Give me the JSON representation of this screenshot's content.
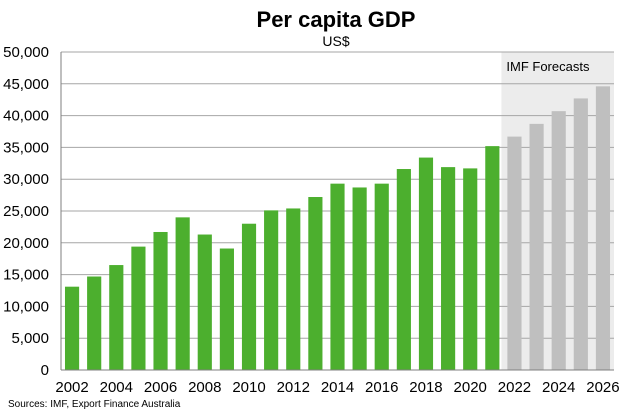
{
  "chart_data": {
    "type": "bar",
    "title": "Per capita GDP",
    "subtitle": "US$",
    "xlabel": "",
    "ylabel": "",
    "ylim": [
      0,
      50000
    ],
    "y_ticks": [
      "0",
      "5,000",
      "10,000",
      "15,000",
      "20,000",
      "25,000",
      "30,000",
      "35,000",
      "40,000",
      "45,000",
      "50,000"
    ],
    "x_tick_labels": [
      "2002",
      "2004",
      "2006",
      "2008",
      "2010",
      "2012",
      "2014",
      "2016",
      "2018",
      "2020",
      "2022",
      "2024",
      "2026"
    ],
    "categories": [
      "2002",
      "2003",
      "2004",
      "2005",
      "2006",
      "2007",
      "2008",
      "2009",
      "2010",
      "2011",
      "2012",
      "2013",
      "2014",
      "2015",
      "2016",
      "2017",
      "2018",
      "2019",
      "2020",
      "2021",
      "2022",
      "2023",
      "2024",
      "2025",
      "2026"
    ],
    "values": [
      13100,
      14700,
      16500,
      19400,
      21700,
      24000,
      21300,
      19100,
      23000,
      25100,
      25400,
      27200,
      29300,
      28700,
      29300,
      31600,
      33400,
      31900,
      31700,
      35200,
      36700,
      38700,
      40700,
      42700,
      44600
    ],
    "forecast_start": "2022",
    "forecast_label": "IMF Forecasts",
    "grid": true,
    "legend": "none",
    "colors": {
      "actual": "#4caf2e",
      "forecast": "#bfbfbf",
      "forecast_shade": "#ececec",
      "grid": "#a6a6a6"
    }
  },
  "source_note": "Sources: IMF, Export Finance Australia"
}
